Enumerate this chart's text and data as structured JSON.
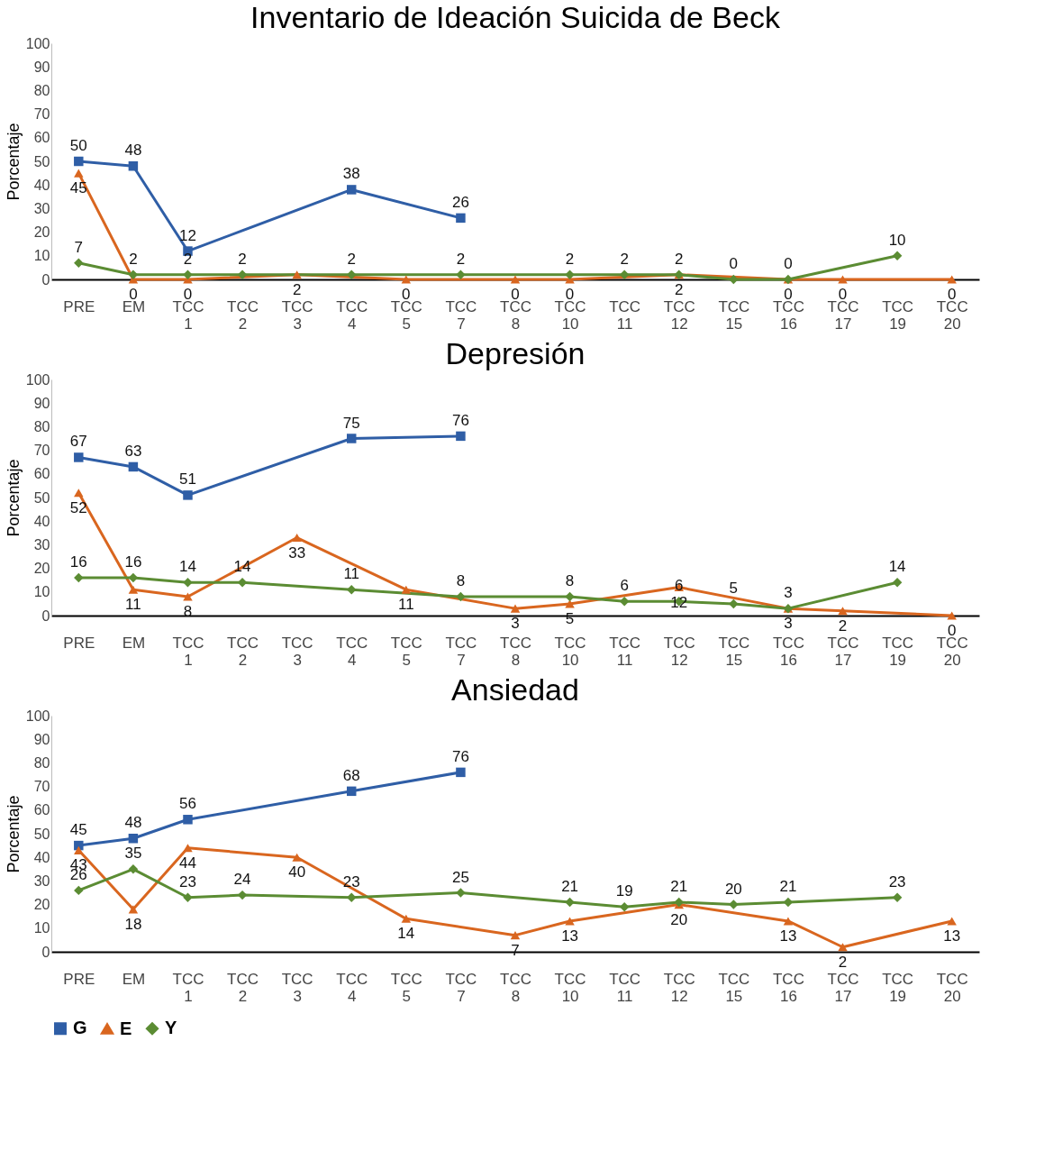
{
  "chart_data": [
    {
      "type": "line",
      "title": "Inventario de Ideación Suicida de Beck",
      "ylabel": "Porcentaje",
      "categories": [
        "PRE",
        "EM",
        "TCC 1",
        "TCC 2",
        "TCC 3",
        "TCC 4",
        "TCC 5",
        "TCC 7",
        "TCC 8",
        "TCC 10",
        "TCC 11",
        "TCC 12",
        "TCC 15",
        "TCC 16",
        "TCC 17",
        "TCC 19",
        "TCC 20"
      ],
      "ylim": [
        0,
        100
      ],
      "yticks": [
        0,
        10,
        20,
        30,
        40,
        50,
        60,
        70,
        80,
        90,
        100
      ],
      "data_labels": true,
      "grid": false,
      "legend": "bottom",
      "series": [
        {
          "name": "G",
          "color": "#2f5ea6",
          "marker": "square",
          "values": [
            50,
            48,
            12,
            null,
            null,
            38,
            null,
            26,
            null,
            null,
            null,
            null,
            null,
            null,
            null,
            null,
            null
          ]
        },
        {
          "name": "E",
          "color": "#d9661f",
          "marker": "triangle",
          "values": [
            45,
            0,
            0,
            null,
            2,
            null,
            0,
            null,
            0,
            0,
            null,
            2,
            null,
            0,
            0,
            null,
            0
          ]
        },
        {
          "name": "Y",
          "color": "#5b8c33",
          "marker": "diamond",
          "values": [
            7,
            2,
            2,
            2,
            null,
            2,
            null,
            2,
            null,
            2,
            2,
            2,
            0,
            0,
            null,
            10,
            null
          ]
        }
      ]
    },
    {
      "type": "line",
      "title": "Depresión",
      "ylabel": "Porcentaje",
      "categories": [
        "PRE",
        "EM",
        "TCC 1",
        "TCC 2",
        "TCC 3",
        "TCC 4",
        "TCC 5",
        "TCC 7",
        "TCC 8",
        "TCC 10",
        "TCC 11",
        "TCC 12",
        "TCC 15",
        "TCC 16",
        "TCC 17",
        "TCC 19",
        "TCC 20"
      ],
      "ylim": [
        0,
        100
      ],
      "yticks": [
        0,
        10,
        20,
        30,
        40,
        50,
        60,
        70,
        80,
        90,
        100
      ],
      "data_labels": true,
      "grid": false,
      "legend": "bottom",
      "series": [
        {
          "name": "G",
          "color": "#2f5ea6",
          "marker": "square",
          "values": [
            67,
            63,
            51,
            null,
            null,
            75,
            null,
            76,
            null,
            null,
            null,
            null,
            null,
            null,
            null,
            null,
            null
          ]
        },
        {
          "name": "E",
          "color": "#d9661f",
          "marker": "triangle",
          "values": [
            52,
            11,
            8,
            null,
            33,
            null,
            11,
            null,
            3,
            5,
            null,
            12,
            null,
            3,
            2,
            null,
            0
          ]
        },
        {
          "name": "Y",
          "color": "#5b8c33",
          "marker": "diamond",
          "values": [
            16,
            16,
            14,
            14,
            null,
            11,
            null,
            8,
            null,
            8,
            6,
            6,
            5,
            3,
            null,
            14,
            null
          ]
        }
      ]
    },
    {
      "type": "line",
      "title": "Ansiedad",
      "ylabel": "Porcentaje",
      "categories": [
        "PRE",
        "EM",
        "TCC 1",
        "TCC 2",
        "TCC 3",
        "TCC 4",
        "TCC 5",
        "TCC 7",
        "TCC 8",
        "TCC 10",
        "TCC 11",
        "TCC 12",
        "TCC 15",
        "TCC 16",
        "TCC 17",
        "TCC 19",
        "TCC 20"
      ],
      "ylim": [
        0,
        100
      ],
      "yticks": [
        0,
        10,
        20,
        30,
        40,
        50,
        60,
        70,
        80,
        90,
        100
      ],
      "data_labels": true,
      "grid": false,
      "legend": "bottom",
      "series": [
        {
          "name": "G",
          "color": "#2f5ea6",
          "marker": "square",
          "values": [
            45,
            48,
            56,
            null,
            null,
            68,
            null,
            76,
            null,
            null,
            null,
            null,
            null,
            null,
            null,
            null,
            null
          ]
        },
        {
          "name": "E",
          "color": "#d9661f",
          "marker": "triangle",
          "values": [
            43,
            18,
            44,
            null,
            40,
            null,
            14,
            null,
            7,
            13,
            null,
            20,
            null,
            13,
            2,
            null,
            13
          ]
        },
        {
          "name": "Y",
          "color": "#5b8c33",
          "marker": "diamond",
          "values": [
            26,
            35,
            23,
            24,
            null,
            23,
            null,
            25,
            null,
            21,
            19,
            21,
            20,
            21,
            null,
            23,
            null
          ]
        }
      ]
    }
  ]
}
